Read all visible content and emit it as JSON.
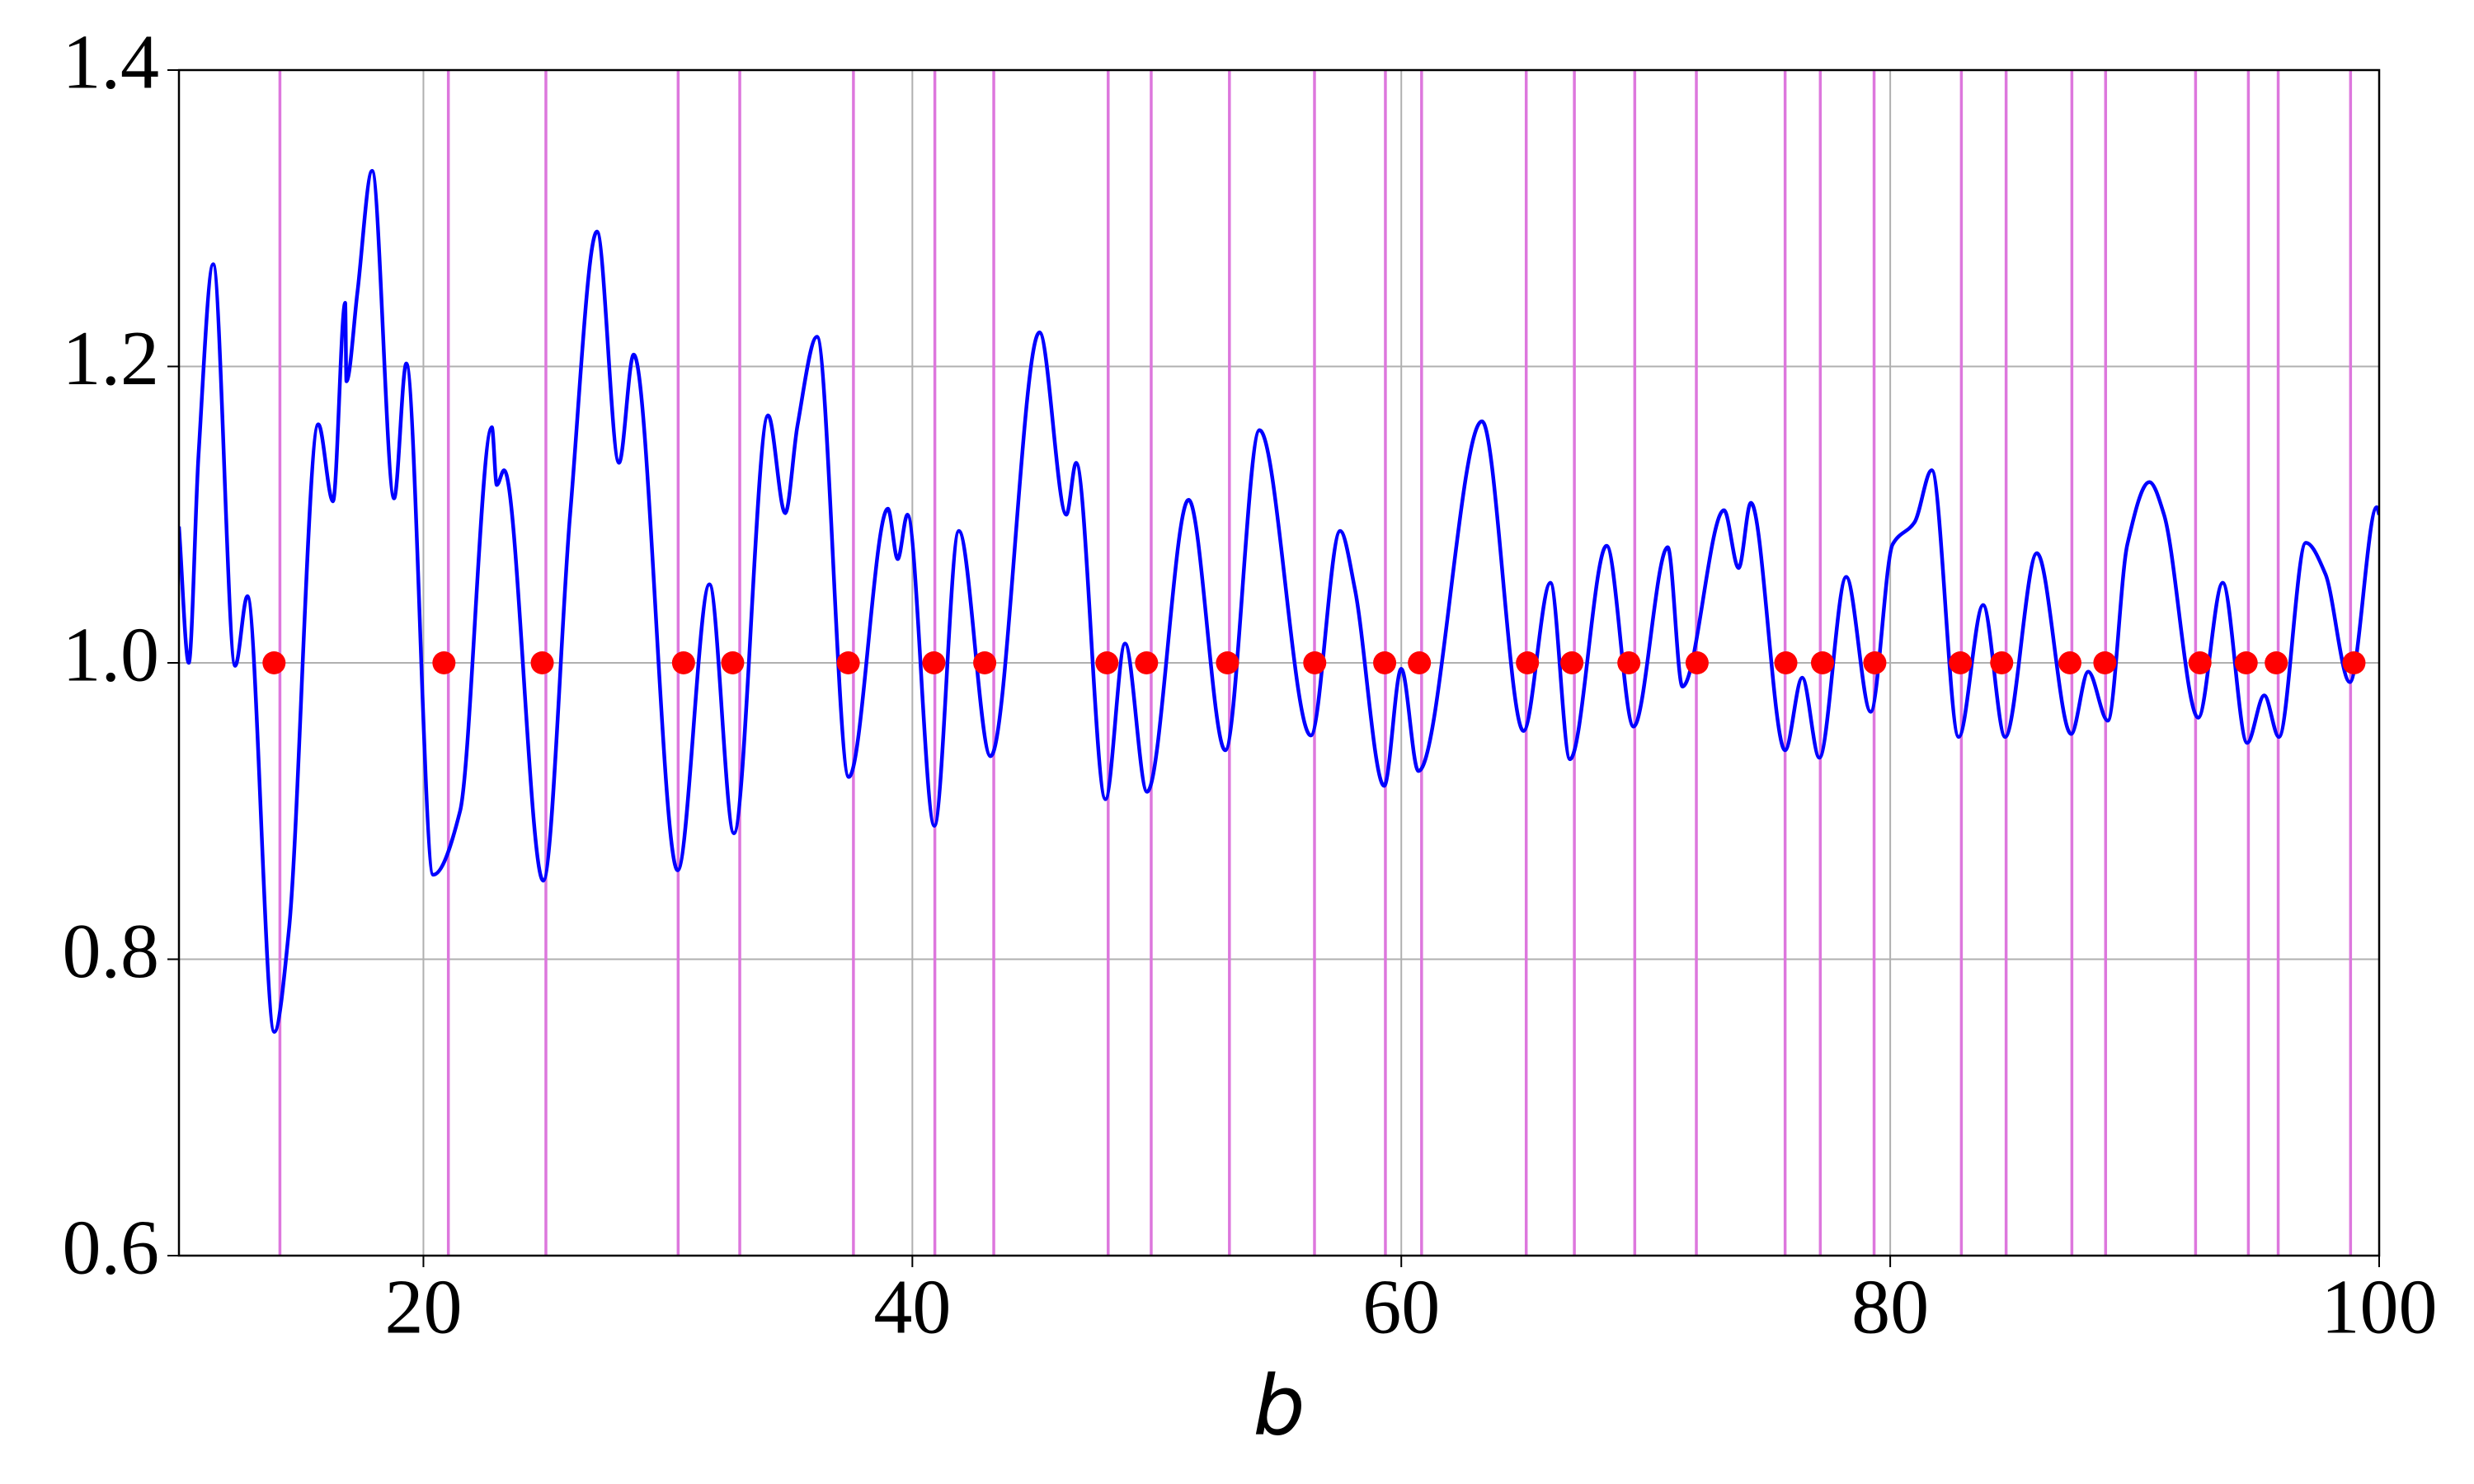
{
  "chart_data": {
    "type": "line",
    "xlabel": "b",
    "xlim": [
      10,
      100
    ],
    "ylim": [
      0.6,
      1.4
    ],
    "xticks": [
      20,
      40,
      60,
      80,
      100
    ],
    "yticks": [
      0.6,
      0.8,
      {
        "value": 1.0,
        "label": "1.0"
      },
      1.2,
      1.4
    ],
    "grid": true,
    "line": {
      "color": "#0000ff",
      "x": [
        10,
        10.4,
        10.8,
        11.4,
        12.3,
        12.8,
        13.9,
        14.5,
        15.7,
        16.3,
        16.8,
        16.85,
        17.3,
        17.9,
        18.8,
        19.3,
        20.4,
        21.5,
        22.8,
        23.0,
        23.3,
        24.9,
        26.0,
        27.1,
        28.0,
        28.6,
        30.4,
        31.7,
        32.7,
        34.1,
        34.8,
        35.3,
        36.1,
        37.4,
        39.0,
        39.4,
        39.8,
        40.9,
        41.9,
        43.2,
        45.2,
        46.3,
        46.7,
        47.9,
        48.7,
        49.6,
        51.3,
        52.8,
        54.2,
        56.3,
        57.5,
        58.1,
        59.3,
        60.0,
        60.7,
        63.3,
        65.0,
        66.1,
        66.9,
        68.4,
        69.5,
        70.9,
        71.5,
        73.2,
        73.8,
        74.3,
        75.7,
        76.4,
        77.1,
        78.2,
        79.2,
        80.1,
        81.0,
        81.7,
        82.8,
        83.8,
        84.7,
        86.0,
        87.4,
        88.1,
        88.9,
        89.7,
        90.6,
        91.2,
        92.6,
        93.6,
        94.6,
        95.3,
        95.9,
        97.0,
        97.8,
        98.8,
        99.9,
        100
      ],
      "y": [
        1.092,
        1.0,
        1.14,
        1.269,
        0.998,
        1.045,
        0.751,
        0.82,
        1.161,
        1.109,
        1.243,
        1.19,
        1.25,
        1.332,
        1.111,
        1.202,
        0.857,
        0.9,
        1.159,
        1.12,
        1.13,
        0.853,
        1.1,
        1.291,
        1.135,
        1.208,
        0.86,
        1.053,
        0.885,
        1.167,
        1.101,
        1.16,
        1.22,
        0.923,
        1.104,
        1.07,
        1.1,
        0.89,
        1.089,
        0.937,
        1.223,
        1.1,
        1.135,
        0.908,
        1.013,
        0.913,
        1.11,
        0.941,
        1.157,
        0.951,
        1.089,
        1.05,
        0.917,
        0.996,
        0.927,
        1.163,
        0.954,
        1.054,
        0.935,
        1.079,
        0.957,
        1.078,
        0.984,
        1.103,
        1.064,
        1.108,
        0.941,
        0.99,
        0.936,
        1.058,
        0.967,
        1.08,
        1.095,
        1.13,
        0.95,
        1.039,
        0.95,
        1.074,
        0.952,
        0.994,
        0.961,
        1.08,
        1.122,
        1.1,
        0.963,
        1.054,
        0.946,
        0.978,
        0.95,
        1.081,
        1.06,
        0.987,
        1.105,
        1.1
      ]
    },
    "vlines": {
      "color": "#dd77dd",
      "x": [
        14.13,
        21.02,
        25.01,
        30.42,
        32.94,
        37.59,
        40.92,
        43.33,
        48.01,
        49.77,
        52.97,
        56.45,
        59.35,
        60.83,
        65.11,
        67.08,
        69.55,
        72.07,
        75.7,
        77.14,
        79.34,
        82.91,
        84.74,
        87.43,
        88.81,
        92.49,
        94.65,
        95.87,
        98.83
      ]
    },
    "points": {
      "color": "#ff0000",
      "x": [
        13.89,
        20.84,
        24.86,
        30.64,
        32.65,
        37.38,
        40.88,
        42.96,
        47.96,
        49.58,
        52.89,
        56.46,
        59.32,
        60.74,
        65.16,
        66.98,
        69.31,
        72.1,
        75.73,
        77.23,
        79.37,
        82.87,
        84.56,
        87.35,
        88.78,
        92.67,
        94.56,
        95.79,
        98.97
      ],
      "y": [
        1,
        1,
        1,
        1,
        1,
        1,
        1,
        1,
        1,
        1,
        1,
        1,
        1,
        1,
        1,
        1,
        1,
        1,
        1,
        1,
        1,
        1,
        1,
        1,
        1,
        1,
        1,
        1,
        1
      ]
    }
  }
}
